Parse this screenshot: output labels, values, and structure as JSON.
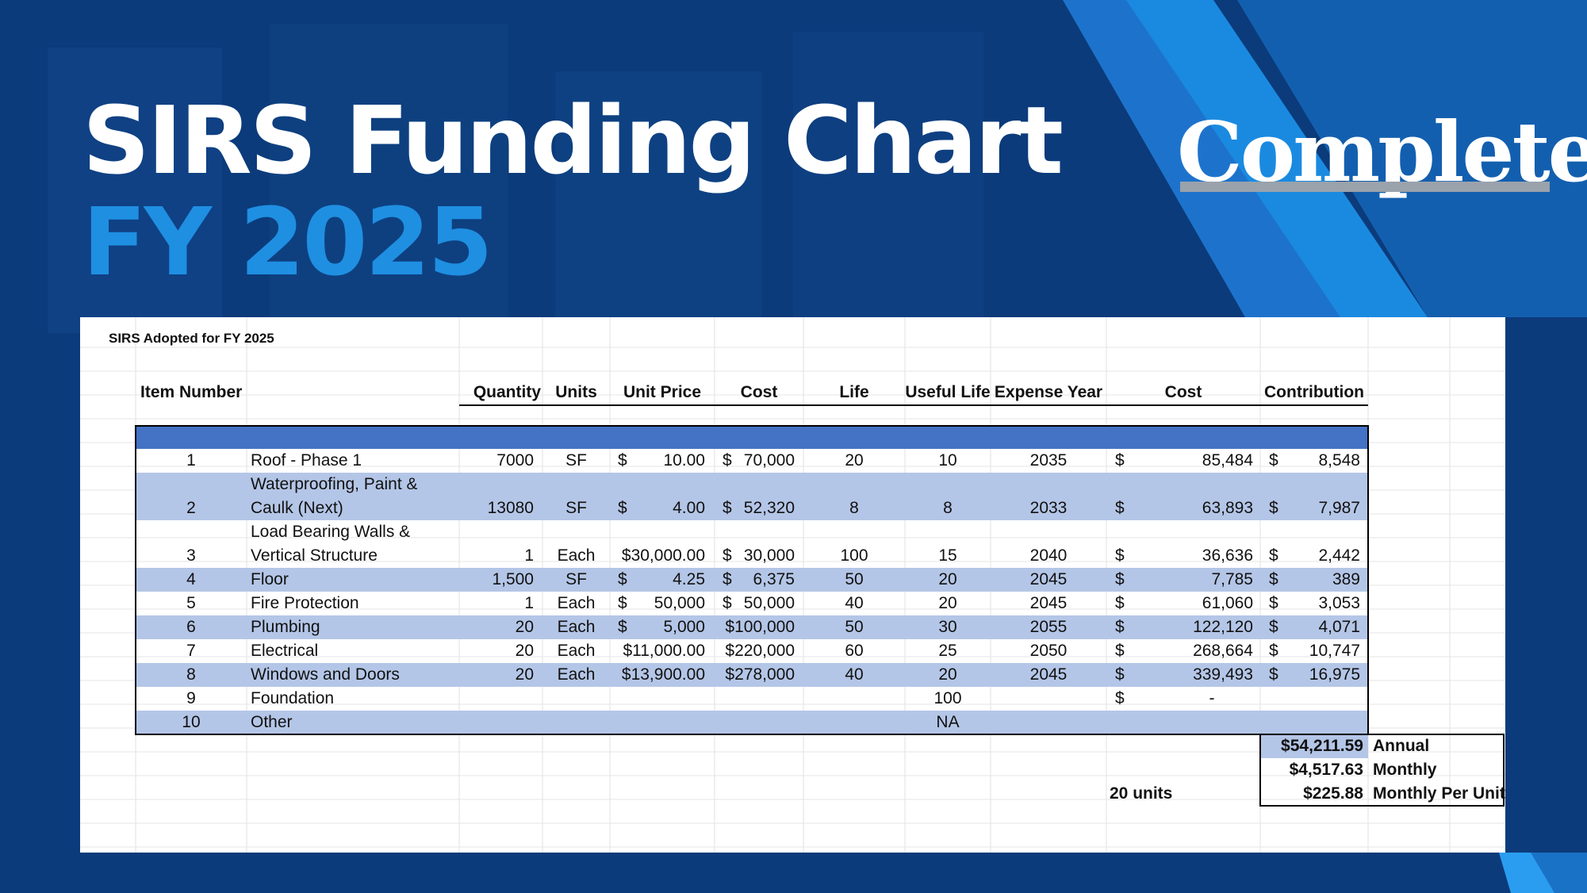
{
  "title": "SIRS Funding Chart",
  "subtitle": "FY 2025",
  "brand": {
    "name": "Complete"
  },
  "colors": {
    "background": "#0d3f82",
    "accent_blue": "#1f8fe2",
    "table_header_bar": "#4472c4",
    "row_band": "#b4c6e7"
  },
  "sheet": {
    "caption": "SIRS Adopted for FY 2025",
    "headers": {
      "item_number": "Item Number",
      "quantity": "Quantity",
      "units": "Units",
      "unit_price": "Unit Price",
      "cost": "Cost",
      "life": "Life",
      "useful_life": "Useful Life",
      "expense_year": "Expense Year",
      "future_cost": "Cost",
      "contribution": "Contribution"
    },
    "rows": [
      {
        "num": "1",
        "desc": [
          "Roof - Phase 1"
        ],
        "qty": "7000",
        "units": "SF",
        "price_sym": "$",
        "price": "10.00",
        "cost_sym": "$",
        "cost": "70,000",
        "life": "20",
        "useful": "10",
        "year": "2035",
        "fc_sym": "$",
        "fc": "85,484",
        "contrib_sym": "$",
        "contrib": "8,548"
      },
      {
        "num": "2",
        "desc": [
          "Waterproofing, Paint &",
          "Caulk (Next)"
        ],
        "qty": "13080",
        "units": "SF",
        "price_sym": "$",
        "price": "4.00",
        "cost_sym": "$",
        "cost": "52,320",
        "life": "8",
        "useful": "8",
        "year": "2033",
        "fc_sym": "$",
        "fc": "63,893",
        "contrib_sym": "$",
        "contrib": "7,987"
      },
      {
        "num": "3",
        "desc": [
          "Load Bearing Walls &",
          "Vertical Structure"
        ],
        "qty": "1",
        "units": "Each",
        "price_sym": "",
        "price": "$30,000.00",
        "cost_sym": "$",
        "cost": "30,000",
        "life": "100",
        "useful": "15",
        "year": "2040",
        "fc_sym": "$",
        "fc": "36,636",
        "contrib_sym": "$",
        "contrib": "2,442"
      },
      {
        "num": "4",
        "desc": [
          "Floor"
        ],
        "qty": "1,500",
        "units": "SF",
        "price_sym": "$",
        "price": "4.25",
        "cost_sym": "$",
        "cost": "6,375",
        "life": "50",
        "useful": "20",
        "year": "2045",
        "fc_sym": "$",
        "fc": "7,785",
        "contrib_sym": "$",
        "contrib": "389"
      },
      {
        "num": "5",
        "desc": [
          "Fire Protection"
        ],
        "qty": "1",
        "units": "Each",
        "price_sym": "$",
        "price": "50,000",
        "cost_sym": "$",
        "cost": "50,000",
        "life": "40",
        "useful": "20",
        "year": "2045",
        "fc_sym": "$",
        "fc": "61,060",
        "contrib_sym": "$",
        "contrib": "3,053"
      },
      {
        "num": "6",
        "desc": [
          "Plumbing"
        ],
        "qty": "20",
        "units": "Each",
        "price_sym": "$",
        "price": "5,000",
        "cost_sym": "",
        "cost": "$100,000",
        "life": "50",
        "useful": "30",
        "year": "2055",
        "fc_sym": "$",
        "fc": "122,120",
        "contrib_sym": "$",
        "contrib": "4,071"
      },
      {
        "num": "7",
        "desc": [
          "Electrical"
        ],
        "qty": "20",
        "units": "Each",
        "price_sym": "",
        "price": "$11,000.00",
        "cost_sym": "",
        "cost": "$220,000",
        "life": "60",
        "useful": "25",
        "year": "2050",
        "fc_sym": "$",
        "fc": "268,664",
        "contrib_sym": "$",
        "contrib": "10,747"
      },
      {
        "num": "8",
        "desc": [
          "Windows and Doors"
        ],
        "qty": "20",
        "units": "Each",
        "price_sym": "",
        "price": "$13,900.00",
        "cost_sym": "",
        "cost": "$278,000",
        "life": "40",
        "useful": "20",
        "year": "2045",
        "fc_sym": "$",
        "fc": "339,493",
        "contrib_sym": "$",
        "contrib": "16,975"
      },
      {
        "num": "9",
        "desc": [
          "Foundation"
        ],
        "qty": "",
        "units": "",
        "price_sym": "",
        "price": "",
        "cost_sym": "",
        "cost": "",
        "life": "",
        "useful": "100",
        "year": "",
        "fc_sym": "$",
        "fc": "-",
        "contrib_sym": "",
        "contrib": ""
      },
      {
        "num": "10",
        "desc": [
          "Other"
        ],
        "qty": "",
        "units": "",
        "price_sym": "",
        "price": "",
        "cost_sym": "",
        "cost": "",
        "life": "",
        "useful": "NA",
        "year": "",
        "fc_sym": "",
        "fc": "",
        "contrib_sym": "",
        "contrib": ""
      }
    ],
    "totals": [
      {
        "value": "$54,211.59",
        "label": "Annual",
        "note": ""
      },
      {
        "value": "$4,517.63",
        "label": "Monthly",
        "note": ""
      },
      {
        "value": "$225.88",
        "label": "Monthly Per Unit",
        "note": "20 units"
      }
    ]
  }
}
